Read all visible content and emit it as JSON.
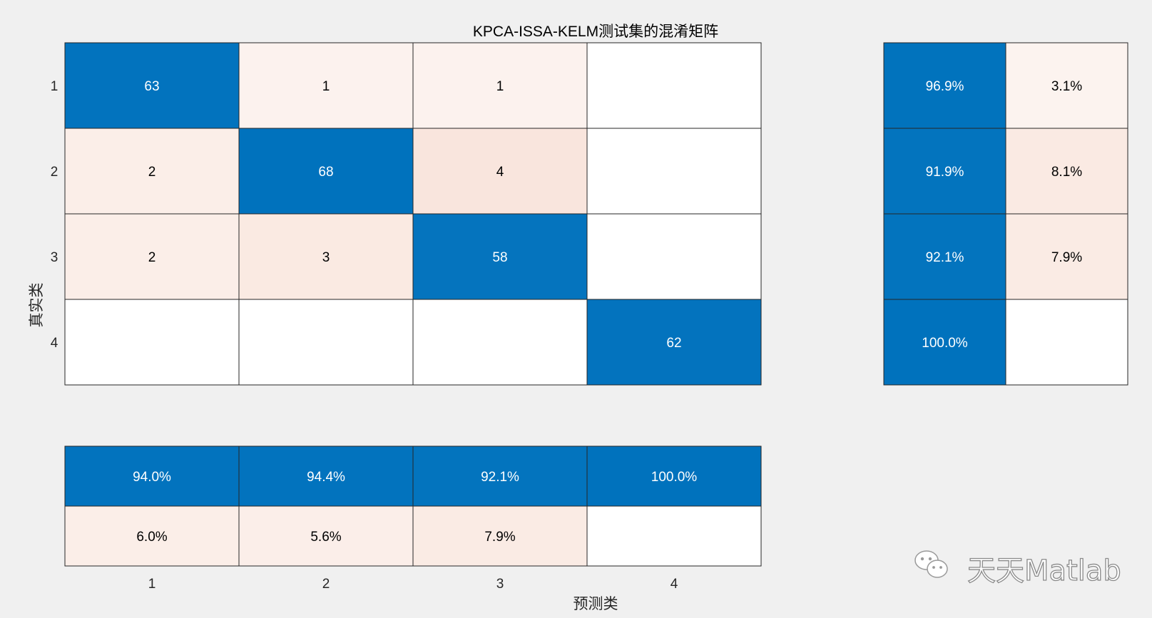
{
  "chart_data": {
    "type": "heatmap",
    "title": "KPCA-ISSA-KELM测试集的混淆矩阵",
    "xlabel": "预测类",
    "ylabel": "真实类",
    "classes": [
      "1",
      "2",
      "3",
      "4"
    ],
    "matrix": [
      [
        63,
        1,
        1,
        null
      ],
      [
        2,
        68,
        4,
        null
      ],
      [
        2,
        3,
        58,
        null
      ],
      [
        null,
        null,
        null,
        62
      ]
    ],
    "row_summary": {
      "correct": [
        "96.9%",
        "91.9%",
        "92.1%",
        "100.0%"
      ],
      "incorrect": [
        "3.1%",
        "8.1%",
        "7.9%",
        ""
      ]
    },
    "column_summary": {
      "correct": [
        "94.0%",
        "94.4%",
        "92.1%",
        "100.0%"
      ],
      "incorrect": [
        "6.0%",
        "5.6%",
        "7.9%",
        ""
      ]
    },
    "colors": {
      "correct": "#0072bd",
      "incorrect": "#d95319",
      "empty": "#ffffff",
      "dark_text": "#000000",
      "light_text": "#ffffff"
    }
  },
  "watermark": {
    "text": "天天Matlab",
    "icon": "wechat-icon"
  }
}
